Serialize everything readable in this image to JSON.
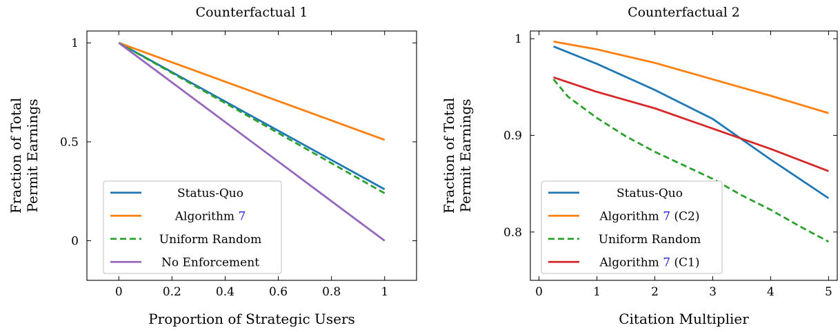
{
  "chart_data": [
    {
      "type": "line",
      "title": "Counterfactual 1",
      "xlabel": "Proportion of Strategic Users",
      "ylabel_lines": [
        "Fraction of Total",
        "Permit Earnings"
      ],
      "xlim": [
        -0.12,
        1.12
      ],
      "ylim": [
        -0.2,
        1.06
      ],
      "xticks": [
        0,
        0.2,
        0.4,
        0.6,
        0.8,
        1
      ],
      "xtick_labels": [
        "0",
        "0.2",
        "0.4",
        "0.6",
        "0.8",
        "1"
      ],
      "yticks": [
        0,
        0.5,
        1
      ],
      "ytick_labels": [
        "0",
        "0.5",
        "1"
      ],
      "legend_position": "lower-left",
      "series": [
        {
          "name": "Status-Quo",
          "color": "#1f77b4",
          "dash": "solid",
          "x": [
            0,
            1
          ],
          "y": [
            1.0,
            0.26
          ]
        },
        {
          "name": "Algorithm ",
          "ref": "7",
          "color": "#ff7f0e",
          "dash": "solid",
          "x": [
            0,
            1
          ],
          "y": [
            1.0,
            0.51
          ]
        },
        {
          "name": "Uniform Random",
          "color": "#2ca02c",
          "dash": "dashed",
          "x": [
            0,
            1
          ],
          "y": [
            1.0,
            0.24
          ]
        },
        {
          "name": "No Enforcement",
          "color": "#9467bd",
          "dash": "solid",
          "x": [
            0,
            1
          ],
          "y": [
            1.0,
            0.0
          ]
        }
      ]
    },
    {
      "type": "line",
      "title": "Counterfactual 2",
      "xlabel": "Citation Multiplier",
      "ylabel_lines": [
        "Fraction of Total",
        "Permit Earnings"
      ],
      "xlim": [
        -0.15,
        5.15
      ],
      "ylim": [
        0.75,
        1.008
      ],
      "xticks": [
        0,
        1,
        2,
        3,
        4,
        5
      ],
      "xtick_labels": [
        "0",
        "1",
        "2",
        "3",
        "4",
        "5"
      ],
      "yticks": [
        0.8,
        0.9,
        1.0
      ],
      "ytick_labels": [
        "0.8",
        "0.9",
        "1"
      ],
      "legend_position": "lower-left",
      "series": [
        {
          "name": "Status-Quo",
          "color": "#1f77b4",
          "dash": "solid",
          "x": [
            0.25,
            1,
            2,
            3,
            4,
            5
          ],
          "y": [
            0.992,
            0.974,
            0.947,
            0.917,
            0.875,
            0.835
          ]
        },
        {
          "name": "Algorithm ",
          "ref": "7",
          "suffix": " (C2)",
          "color": "#ff7f0e",
          "dash": "solid",
          "x": [
            0.25,
            1,
            2,
            3,
            4,
            5
          ],
          "y": [
            0.997,
            0.989,
            0.975,
            0.958,
            0.941,
            0.923
          ]
        },
        {
          "name": "Uniform Random",
          "color": "#2ca02c",
          "dash": "dashed",
          "x": [
            0.25,
            0.5,
            1,
            1.5,
            2,
            2.5,
            3,
            3.5,
            4,
            4.5,
            5
          ],
          "y": [
            0.958,
            0.94,
            0.918,
            0.899,
            0.883,
            0.869,
            0.855,
            0.838,
            0.823,
            0.806,
            0.79
          ]
        },
        {
          "name": "Algorithm ",
          "ref": "7",
          "suffix": " (C1)",
          "color": "#d62728",
          "dash": "solid",
          "x": [
            0.25,
            1,
            2,
            3,
            4,
            5
          ],
          "y": [
            0.96,
            0.945,
            0.928,
            0.907,
            0.886,
            0.863
          ]
        }
      ]
    }
  ]
}
